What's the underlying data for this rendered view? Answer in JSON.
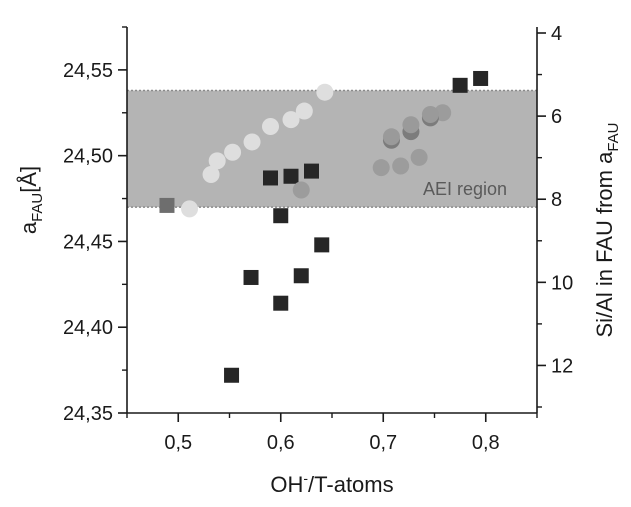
{
  "chart_data": {
    "type": "scatter",
    "title": "",
    "xlabel": {
      "base": "OH",
      "sup": "-",
      "rest": "/T-atoms"
    },
    "ylabel": {
      "base": "a",
      "sub": "FAU",
      "rest": "[Å]"
    },
    "y2label": {
      "base": "Si/Al in FAU from a",
      "sub": "FAU"
    },
    "xlim": [
      0.45,
      0.85
    ],
    "ylim": [
      24.35,
      24.575
    ],
    "y2lim": [
      4,
      13
    ],
    "xticks": [
      0.5,
      0.6,
      0.7,
      0.8
    ],
    "xtick_labels": [
      "0,5",
      "0,6",
      "0,7",
      "0,8"
    ],
    "yticks": [
      24.35,
      24.4,
      24.45,
      24.5,
      24.55
    ],
    "ytick_labels": [
      "24,35",
      "24,40",
      "24,45",
      "24,50",
      "24,55"
    ],
    "y2ticks": [
      4,
      6,
      8,
      10,
      12
    ],
    "y2tick_labels": [
      "4",
      "6",
      "8",
      "10",
      "12"
    ],
    "region": {
      "label": "AEI region",
      "y_range": [
        24.47,
        24.538
      ],
      "color": "#b4b4b4"
    },
    "series": [
      {
        "marker": "square",
        "color": "#262626",
        "points": [
          {
            "x": 0.552,
            "y": 24.372
          },
          {
            "x": 0.571,
            "y": 24.429
          },
          {
            "x": 0.59,
            "y": 24.487
          },
          {
            "x": 0.6,
            "y": 24.465
          },
          {
            "x": 0.6,
            "y": 24.414
          },
          {
            "x": 0.61,
            "y": 24.488
          },
          {
            "x": 0.62,
            "y": 24.43
          },
          {
            "x": 0.63,
            "y": 24.491
          },
          {
            "x": 0.64,
            "y": 24.448
          },
          {
            "x": 0.775,
            "y": 24.541
          },
          {
            "x": 0.795,
            "y": 24.545
          }
        ]
      },
      {
        "marker": "square",
        "color": "#6e6e6e",
        "points": [
          {
            "x": 0.489,
            "y": 24.471
          }
        ]
      },
      {
        "marker": "circle",
        "color": "#dedede",
        "points": [
          {
            "x": 0.511,
            "y": 24.469
          },
          {
            "x": 0.532,
            "y": 24.489
          },
          {
            "x": 0.538,
            "y": 24.497
          },
          {
            "x": 0.553,
            "y": 24.502
          },
          {
            "x": 0.572,
            "y": 24.508
          },
          {
            "x": 0.59,
            "y": 24.517
          },
          {
            "x": 0.61,
            "y": 24.521
          },
          {
            "x": 0.623,
            "y": 24.526
          },
          {
            "x": 0.643,
            "y": 24.537
          }
        ]
      },
      {
        "marker": "circle",
        "color": "#9c9c9c",
        "points": [
          {
            "x": 0.62,
            "y": 24.48
          },
          {
            "x": 0.698,
            "y": 24.493
          },
          {
            "x": 0.717,
            "y": 24.494
          },
          {
            "x": 0.735,
            "y": 24.499
          },
          {
            "x": 0.758,
            "y": 24.525
          }
        ]
      },
      {
        "marker": "circle",
        "color": "#7c7c7c",
        "points": [
          {
            "x": 0.708,
            "y": 24.509
          },
          {
            "x": 0.727,
            "y": 24.514
          },
          {
            "x": 0.746,
            "y": 24.522
          }
        ]
      },
      {
        "marker": "circle",
        "color": "#9a9a9a",
        "points": [
          {
            "x": 0.708,
            "y": 24.511
          },
          {
            "x": 0.727,
            "y": 24.518
          },
          {
            "x": 0.746,
            "y": 24.524
          }
        ]
      }
    ]
  }
}
